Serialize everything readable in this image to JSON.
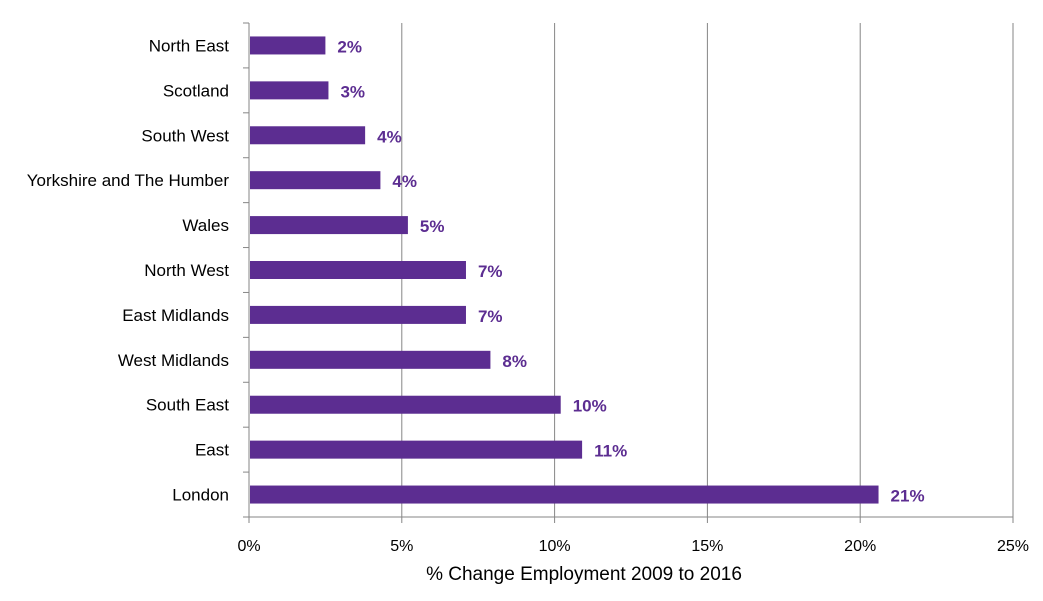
{
  "chart_data": {
    "type": "bar",
    "orientation": "horizontal",
    "categories": [
      "North East",
      "Scotland",
      "South West",
      "Yorkshire and The Humber",
      "Wales",
      "North West",
      "East Midlands",
      "West Midlands",
      "South East",
      "East",
      "London"
    ],
    "values": [
      2.5,
      2.6,
      3.8,
      4.3,
      5.2,
      7.1,
      7.1,
      7.9,
      10.2,
      10.9,
      20.6
    ],
    "data_labels": [
      "2%",
      "3%",
      "4%",
      "4%",
      "5%",
      "7%",
      "7%",
      "8%",
      "10%",
      "11%",
      "21%"
    ],
    "xlabel": "% Change Employment  2009 to 2016",
    "ylabel": "",
    "xlim": [
      0,
      25
    ],
    "x_ticks": [
      "0%",
      "5%",
      "10%",
      "15%",
      "20%",
      "25%"
    ],
    "grid": "vertical",
    "legend": "none",
    "colors": {
      "bar": "#5c2d91",
      "label": "#5c2d91",
      "grid": "#868686"
    }
  }
}
